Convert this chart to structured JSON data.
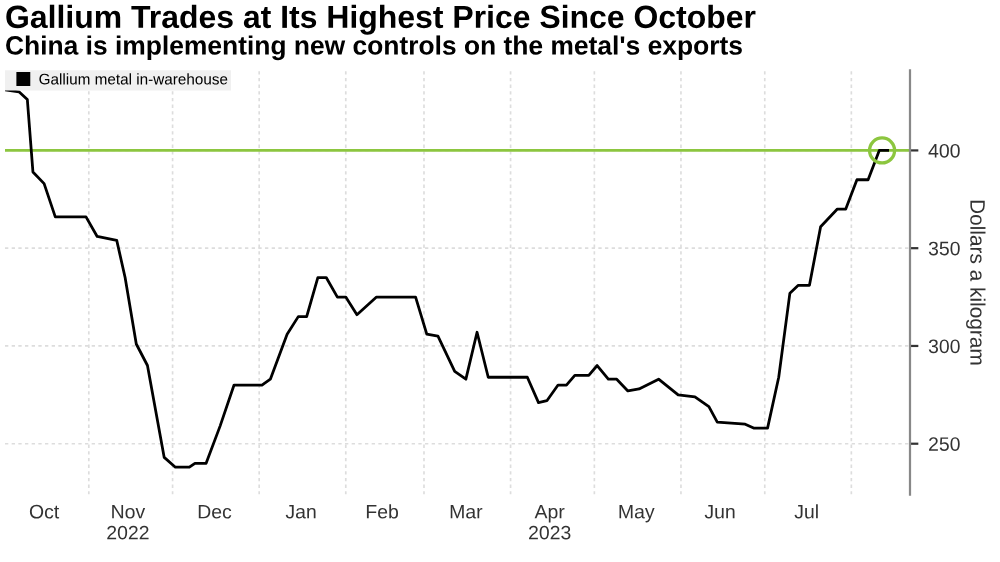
{
  "chart_data": {
    "type": "line",
    "title": "Gallium Trades at Its Highest Price Since October",
    "subtitle": "China is implementing new controls on the metal's exports",
    "ylabel": "Dollars a kilogram",
    "legend": "top left",
    "grid": true,
    "series": [
      {
        "name": "Gallium metal in-warehouse",
        "color": "#000000",
        "x": [
          "2022-10-02",
          "2022-10-07",
          "2022-10-10",
          "2022-10-12",
          "2022-10-16",
          "2022-10-20",
          "2022-10-31",
          "2022-11-04",
          "2022-11-11",
          "2022-11-14",
          "2022-11-18",
          "2022-11-22",
          "2022-11-28",
          "2022-12-02",
          "2022-12-07",
          "2022-12-09",
          "2022-12-13",
          "2022-12-18",
          "2022-12-23",
          "2023-01-02",
          "2023-01-05",
          "2023-01-11",
          "2023-01-15",
          "2023-01-18",
          "2023-01-22",
          "2023-01-25",
          "2023-01-29",
          "2023-02-01",
          "2023-02-05",
          "2023-02-12",
          "2023-02-26",
          "2023-03-02",
          "2023-03-06",
          "2023-03-12",
          "2023-03-16",
          "2023-03-20",
          "2023-03-24",
          "2023-04-07",
          "2023-04-11",
          "2023-04-14",
          "2023-04-18",
          "2023-04-21",
          "2023-04-24",
          "2023-04-29",
          "2023-05-02",
          "2023-05-06",
          "2023-05-09",
          "2023-05-13",
          "2023-05-17",
          "2023-05-24",
          "2023-05-31",
          "2023-06-06",
          "2023-06-11",
          "2023-06-14",
          "2023-06-24",
          "2023-06-27",
          "2023-07-02",
          "2023-07-06",
          "2023-07-10",
          "2023-07-13",
          "2023-07-17",
          "2023-07-21",
          "2023-07-27",
          "2023-07-30",
          "2023-08-03",
          "2023-08-07",
          "2023-08-11",
          "2023-08-14"
        ],
        "values": [
          431,
          430,
          426,
          389,
          383,
          366,
          366,
          356,
          354,
          335,
          301,
          290,
          243,
          238,
          238,
          240,
          240,
          259,
          280,
          280,
          283,
          306,
          315,
          315,
          335,
          335,
          325,
          325,
          316,
          325,
          325,
          306,
          305,
          287,
          283,
          307,
          284,
          284,
          271,
          272,
          280,
          280,
          285,
          285,
          290,
          283,
          283,
          277,
          278,
          283,
          275,
          274,
          269,
          261,
          260,
          258,
          258,
          284,
          327,
          331,
          331,
          361,
          370,
          370,
          385,
          385,
          400,
          400
        ]
      },
      {
        "type": "scatter",
        "color": "#8cc63f",
        "marker": "circle",
        "x": [
          "2023-08-12"
        ],
        "values": [
          400
        ]
      }
    ],
    "ref_lines": [
      {
        "axis": "y",
        "value": 400,
        "color": "#8cc63f"
      }
    ],
    "xlim": [
      "2022-10-02",
      "2023-08-22"
    ],
    "xticks": [
      {
        "value": "2022-10-16",
        "label": "Oct"
      },
      {
        "value": "2022-11-01",
        "label": null
      },
      {
        "value": "2022-11-15",
        "label": "Nov\n2022"
      },
      {
        "value": "2022-12-01",
        "label": null
      },
      {
        "value": "2022-12-16",
        "label": "Dec"
      },
      {
        "value": "2023-01-01",
        "label": null
      },
      {
        "value": "2023-01-16",
        "label": "Jan"
      },
      {
        "value": "2023-02-01",
        "label": null
      },
      {
        "value": "2023-02-14",
        "label": "Feb"
      },
      {
        "value": "2023-03-01",
        "label": null
      },
      {
        "value": "2023-03-16",
        "label": "Mar"
      },
      {
        "value": "2023-04-01",
        "label": null
      },
      {
        "value": "2023-04-15",
        "label": "Apr\n2023"
      },
      {
        "value": "2023-05-01",
        "label": null
      },
      {
        "value": "2023-05-16",
        "label": "May"
      },
      {
        "value": "2023-06-01",
        "label": null
      },
      {
        "value": "2023-06-15",
        "label": "Jun"
      },
      {
        "value": "2023-07-01",
        "label": null
      },
      {
        "value": "2023-07-16",
        "label": "Jul"
      },
      {
        "value": "2023-08-01",
        "label": null
      }
    ],
    "ylim": [
      224,
      441
    ],
    "yticks": [
      250,
      300,
      350,
      400
    ]
  }
}
